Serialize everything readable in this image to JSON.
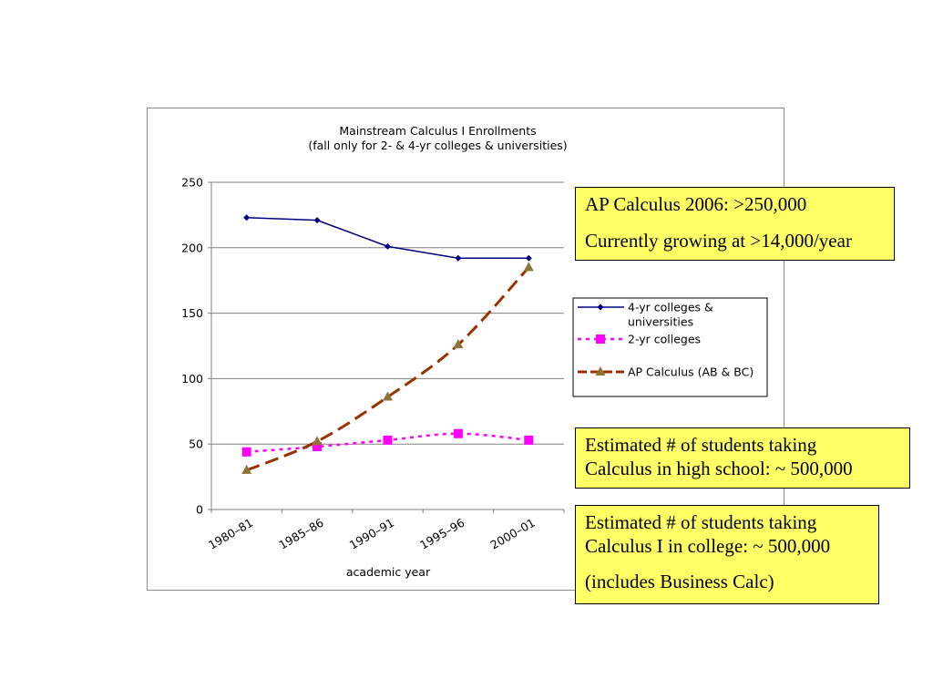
{
  "chart_data": {
    "type": "line",
    "title": "Mainstream Calculus I Enrollments",
    "subtitle": "(fall only for 2- & 4-yr colleges & universities)",
    "xlabel": "academic year",
    "ylabel": "",
    "categories": [
      "1980–81",
      "1985–86",
      "1990–91",
      "1995–96",
      "2000–01"
    ],
    "ylim": [
      0,
      250
    ],
    "yticks": [
      "0",
      "50",
      "100",
      "150",
      "200",
      "250"
    ],
    "grid": true,
    "legend_position": "right",
    "series": [
      {
        "name": "4-yr colleges & universities",
        "legend_lines": [
          "4-yr colleges &",
          "universities"
        ],
        "values": [
          223,
          221,
          201,
          192,
          192
        ],
        "color": "#000080",
        "style": "solid",
        "marker": "diamond"
      },
      {
        "name": "2-yr colleges",
        "legend_lines": [
          "2-yr colleges"
        ],
        "values": [
          44,
          48,
          53,
          58,
          53
        ],
        "color": "#ff00ff",
        "style": "dotted",
        "marker": "square"
      },
      {
        "name": "AP Calculus (AB & BC)",
        "legend_lines": [
          "AP Calculus (AB & BC)"
        ],
        "values": [
          30,
          52,
          86,
          126,
          185
        ],
        "color": "#993300",
        "marker_color": "#8b7537",
        "style": "dashed",
        "marker": "triangle"
      }
    ]
  },
  "notes": {
    "ap": {
      "line1": "AP Calculus 2006: >250,000",
      "line2": "Currently growing at >14,000/year"
    },
    "hs": {
      "line1": "Estimated # of students taking",
      "line2": "Calculus in high school: ~ 500,000"
    },
    "college": {
      "line1": "Estimated # of students taking",
      "line2": "Calculus I in college: ~ 500,000",
      "line3": "(includes Business Calc)"
    }
  },
  "colors": {
    "note_background": "#ffff66",
    "gridline": "#808080",
    "frame": "#8c8c8c"
  }
}
